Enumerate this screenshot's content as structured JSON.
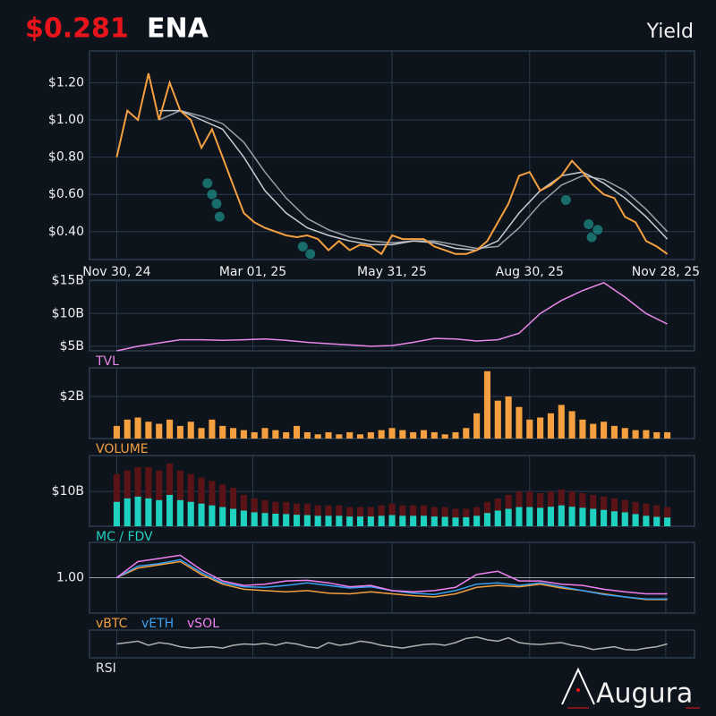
{
  "header": {
    "price": "$0.281",
    "symbol": "ENA",
    "mode": "Yield"
  },
  "logo": "Augura",
  "chart_data": [
    {
      "type": "line",
      "title": null,
      "x": [
        0,
        7,
        14,
        21,
        28,
        35,
        42,
        49,
        56,
        63,
        70,
        77,
        84,
        91,
        98,
        105,
        112,
        119,
        126,
        133,
        140,
        147,
        154,
        161,
        168,
        175,
        182,
        189,
        196,
        203,
        210,
        217,
        224,
        231,
        238,
        245,
        252,
        259,
        266,
        273,
        280,
        287,
        294,
        301,
        308,
        315,
        322,
        329,
        336,
        343,
        350,
        357,
        364
      ],
      "xlim": [
        -18,
        382
      ],
      "xticks": [
        {
          "value": 0,
          "label": "Nov 30, 24"
        },
        {
          "value": 90,
          "label": "Mar 01, 25"
        },
        {
          "value": 182,
          "label": "May 31, 25"
        },
        {
          "value": 273,
          "label": "Aug 30, 25"
        },
        {
          "value": 363,
          "label": "Nov 28, 25"
        }
      ],
      "ylim": [
        0.25,
        1.37
      ],
      "yticks": [
        {
          "value": 0.4,
          "label": "$0.40"
        },
        {
          "value": 0.6,
          "label": "$0.60"
        },
        {
          "value": 0.8,
          "label": "$0.80"
        },
        {
          "value": 1.0,
          "label": "$1.00"
        },
        {
          "value": 1.2,
          "label": "$1.20"
        }
      ],
      "grid": true,
      "series": [
        {
          "color": "#9a9fa8",
          "x": [
            28,
            42,
            56,
            70,
            84,
            98,
            112,
            126,
            140,
            154,
            168,
            182,
            196,
            210,
            224,
            238,
            252,
            266,
            280,
            294,
            308,
            322,
            336,
            350,
            364
          ],
          "values": [
            1.0,
            1.05,
            1.02,
            0.98,
            0.88,
            0.72,
            0.58,
            0.47,
            0.41,
            0.37,
            0.35,
            0.34,
            0.35,
            0.35,
            0.33,
            0.31,
            0.32,
            0.42,
            0.55,
            0.65,
            0.7,
            0.68,
            0.62,
            0.52,
            0.4
          ]
        },
        {
          "color": "#c8ccd2",
          "x": [
            28,
            42,
            56,
            70,
            84,
            98,
            112,
            126,
            140,
            154,
            168,
            182,
            196,
            210,
            224,
            238,
            252,
            266,
            280,
            294,
            308,
            322,
            336,
            350,
            364
          ],
          "values": [
            1.05,
            1.05,
            1.0,
            0.95,
            0.8,
            0.62,
            0.5,
            0.42,
            0.38,
            0.35,
            0.33,
            0.33,
            0.35,
            0.34,
            0.31,
            0.3,
            0.35,
            0.5,
            0.62,
            0.7,
            0.72,
            0.66,
            0.58,
            0.48,
            0.36
          ]
        },
        {
          "color": "#f5a040",
          "values": [
            0.8,
            1.05,
            1.0,
            1.25,
            1.0,
            1.2,
            1.05,
            1.0,
            0.85,
            0.95,
            0.8,
            0.65,
            0.5,
            0.45,
            0.42,
            0.4,
            0.38,
            0.37,
            0.38,
            0.36,
            0.3,
            0.35,
            0.3,
            0.33,
            0.32,
            0.28,
            0.38,
            0.36,
            0.36,
            0.36,
            0.32,
            0.3,
            0.28,
            0.28,
            0.3,
            0.35,
            0.45,
            0.55,
            0.7,
            0.72,
            0.62,
            0.65,
            0.7,
            0.78,
            0.72,
            0.65,
            0.6,
            0.58,
            0.48,
            0.45,
            0.35,
            0.32,
            0.28
          ]
        },
        {
          "color": "#1fa9a0",
          "style": "marker",
          "x": [
            60,
            63,
            66,
            68,
            123,
            128,
            297,
            312,
            314,
            318
          ],
          "values": [
            0.66,
            0.6,
            0.55,
            0.48,
            0.32,
            0.28,
            0.57,
            0.44,
            0.37,
            0.41
          ]
        }
      ]
    },
    {
      "type": "line",
      "title": "TVL",
      "title_color": "#e888e8",
      "x": [
        0,
        14,
        28,
        42,
        56,
        70,
        84,
        98,
        112,
        126,
        140,
        154,
        168,
        182,
        196,
        210,
        224,
        238,
        252,
        266,
        280,
        294,
        308,
        322,
        336,
        350,
        364
      ],
      "xlim": [
        -18,
        382
      ],
      "ylim": [
        4.3,
        15.1
      ],
      "yticks": [
        {
          "value": 5,
          "label": "$5B"
        },
        {
          "value": 10,
          "label": "$10B"
        },
        {
          "value": 15,
          "label": "$15B"
        }
      ],
      "grid": true,
      "series": [
        {
          "color": "#e888e8",
          "values": [
            4.3,
            5.0,
            5.5,
            6.0,
            6.0,
            5.9,
            6.0,
            6.1,
            5.9,
            5.6,
            5.4,
            5.2,
            5.0,
            5.1,
            5.6,
            6.2,
            6.1,
            5.8,
            6.0,
            7.0,
            10.0,
            12.0,
            13.5,
            14.7,
            12.5,
            10.0,
            8.4
          ]
        }
      ]
    },
    {
      "type": "bar",
      "title": "VOLUME",
      "title_color": "#f5a040",
      "x": [
        0,
        7,
        14,
        21,
        28,
        35,
        42,
        49,
        56,
        63,
        70,
        77,
        84,
        91,
        98,
        105,
        112,
        119,
        126,
        133,
        140,
        147,
        154,
        161,
        168,
        175,
        182,
        189,
        196,
        203,
        210,
        217,
        224,
        231,
        238,
        245,
        252,
        259,
        266,
        273,
        280,
        287,
        294,
        301,
        308,
        315,
        322,
        329,
        336,
        343,
        350,
        357,
        364
      ],
      "xlim": [
        -18,
        382
      ],
      "ylim": [
        0,
        3.36
      ],
      "yticks": [
        {
          "value": 2,
          "label": "$2B"
        }
      ],
      "grid": true,
      "series": [
        {
          "color": "#f5a040",
          "values": [
            0.6,
            0.9,
            1.0,
            0.8,
            0.7,
            0.9,
            0.6,
            0.8,
            0.5,
            0.9,
            0.6,
            0.5,
            0.4,
            0.3,
            0.5,
            0.4,
            0.3,
            0.6,
            0.3,
            0.2,
            0.3,
            0.2,
            0.3,
            0.2,
            0.3,
            0.4,
            0.5,
            0.4,
            0.3,
            0.4,
            0.3,
            0.2,
            0.3,
            0.5,
            1.2,
            3.2,
            1.8,
            2.0,
            1.5,
            0.9,
            1.0,
            1.2,
            1.6,
            1.3,
            0.9,
            0.7,
            0.8,
            0.6,
            0.5,
            0.4,
            0.4,
            0.3,
            0.3
          ]
        }
      ]
    },
    {
      "type": "bar",
      "title": "MC / FDV",
      "title_color": "#1fd1c1",
      "x": [
        0,
        7,
        14,
        21,
        28,
        35,
        42,
        49,
        56,
        63,
        70,
        77,
        84,
        91,
        98,
        105,
        112,
        119,
        126,
        133,
        140,
        147,
        154,
        161,
        168,
        175,
        182,
        189,
        196,
        203,
        210,
        217,
        224,
        231,
        238,
        245,
        252,
        259,
        266,
        273,
        280,
        287,
        294,
        301,
        308,
        315,
        322,
        329,
        336,
        343,
        350,
        357,
        364
      ],
      "xlim": [
        -18,
        382
      ],
      "ylim": [
        0,
        20.3
      ],
      "yticks": [
        {
          "value": 10,
          "label": "$10B"
        }
      ],
      "grid": true,
      "series": [
        {
          "color": "#5a1418",
          "values": [
            15,
            16,
            17,
            17,
            16,
            18,
            16,
            15,
            14,
            13,
            12,
            11,
            9,
            8,
            7.5,
            7,
            7,
            6.5,
            6.5,
            6,
            6,
            6,
            5.5,
            5.5,
            5.5,
            6,
            6.5,
            6,
            6,
            6,
            5.5,
            5.5,
            5,
            5,
            5.5,
            7,
            8,
            9,
            10,
            10,
            9.5,
            10,
            10.5,
            10,
            9.5,
            9,
            8.5,
            8,
            7.5,
            7,
            6.5,
            6,
            5.5
          ]
        },
        {
          "color": "#1fd1c1",
          "values": [
            7,
            8,
            8.5,
            8,
            7.5,
            9,
            7.5,
            7,
            6.5,
            6,
            5.5,
            5,
            4.5,
            4,
            3.8,
            3.6,
            3.5,
            3.3,
            3.2,
            3.0,
            3.0,
            3.0,
            2.8,
            2.8,
            2.8,
            3.0,
            3.2,
            3.0,
            3.0,
            3.0,
            2.8,
            2.7,
            2.5,
            2.6,
            3.0,
            3.8,
            4.5,
            5.0,
            5.5,
            5.5,
            5.3,
            5.6,
            6.0,
            5.6,
            5.3,
            5.0,
            4.7,
            4.3,
            4.0,
            3.5,
            3.0,
            2.7,
            2.5
          ]
        }
      ]
    },
    {
      "type": "line",
      "title": null,
      "x": [
        0,
        14,
        28,
        42,
        56,
        70,
        84,
        98,
        112,
        126,
        140,
        154,
        168,
        182,
        196,
        210,
        224,
        238,
        252,
        266,
        280,
        294,
        308,
        322,
        336,
        350,
        364
      ],
      "xlim": [
        -18,
        382
      ],
      "ylim": [
        0.45,
        1.55
      ],
      "yticks": [
        {
          "value": 1,
          "label": "1.00"
        }
      ],
      "grid": true,
      "series": [
        {
          "name": "vBTC",
          "color": "#f5a040",
          "values": [
            1.0,
            1.15,
            1.2,
            1.25,
            1.05,
            0.9,
            0.82,
            0.8,
            0.78,
            0.8,
            0.76,
            0.75,
            0.78,
            0.75,
            0.72,
            0.7,
            0.75,
            0.85,
            0.88,
            0.86,
            0.9,
            0.84,
            0.8,
            0.75,
            0.7,
            0.66,
            0.66
          ]
        },
        {
          "name": "vETH",
          "color": "#3aa0f0",
          "values": [
            1.0,
            1.18,
            1.22,
            1.28,
            1.08,
            0.92,
            0.86,
            0.85,
            0.88,
            0.92,
            0.88,
            0.84,
            0.86,
            0.8,
            0.76,
            0.74,
            0.8,
            0.9,
            0.92,
            0.88,
            0.92,
            0.86,
            0.8,
            0.74,
            0.7,
            0.67,
            0.67
          ]
        },
        {
          "name": "vSOL",
          "color": "#f080f0",
          "values": [
            1.0,
            1.25,
            1.3,
            1.35,
            1.12,
            0.95,
            0.88,
            0.9,
            0.95,
            0.96,
            0.92,
            0.86,
            0.88,
            0.8,
            0.78,
            0.8,
            0.85,
            1.05,
            1.1,
            0.95,
            0.95,
            0.9,
            0.88,
            0.82,
            0.78,
            0.75,
            0.75
          ]
        }
      ]
    },
    {
      "type": "line",
      "title": "RSI",
      "title_color": "#e6e6e6",
      "x": [
        0,
        7,
        14,
        21,
        28,
        35,
        42,
        49,
        56,
        63,
        70,
        77,
        84,
        91,
        98,
        105,
        112,
        119,
        126,
        133,
        140,
        147,
        154,
        161,
        168,
        175,
        182,
        189,
        196,
        203,
        210,
        217,
        224,
        231,
        238,
        245,
        252,
        259,
        266,
        273,
        280,
        287,
        294,
        301,
        308,
        315,
        322,
        329,
        336,
        343,
        350,
        357,
        364
      ],
      "xlim": [
        -18,
        382
      ],
      "ylim": [
        0,
        100
      ],
      "yticks": [],
      "grid": false,
      "series": [
        {
          "color": "#b0b0b0",
          "values": [
            50,
            55,
            60,
            45,
            55,
            50,
            40,
            35,
            38,
            40,
            35,
            45,
            50,
            48,
            52,
            45,
            55,
            50,
            40,
            35,
            55,
            45,
            50,
            60,
            55,
            45,
            40,
            35,
            42,
            48,
            50,
            45,
            55,
            70,
            75,
            65,
            60,
            72,
            55,
            50,
            48,
            52,
            55,
            45,
            40,
            30,
            35,
            40,
            30,
            28,
            35,
            40,
            50
          ]
        }
      ]
    }
  ]
}
